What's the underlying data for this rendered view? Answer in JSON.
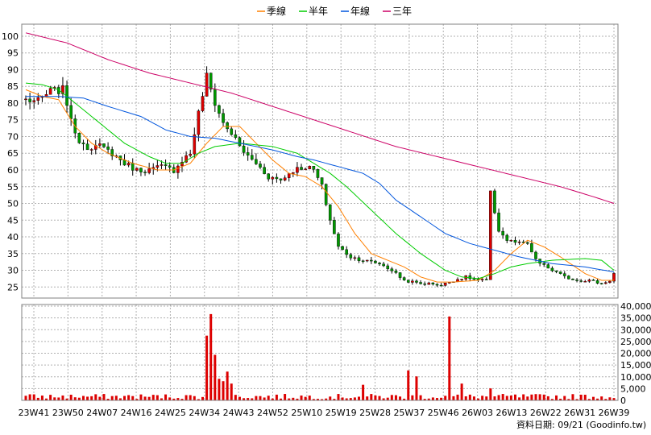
{
  "chart_data": {
    "type": "candlestick",
    "legend": [
      {
        "name": "季線",
        "color": "#ff8000"
      },
      {
        "name": "半年",
        "color": "#00cc00"
      },
      {
        "name": "年線",
        "color": "#0055dd"
      },
      {
        "name": "三年",
        "color": "#cc0066"
      }
    ],
    "legend_placement": "top-center",
    "grid": true,
    "price_axis": {
      "ticks": [
        100,
        95,
        90,
        85,
        80,
        75,
        70,
        65,
        60,
        55,
        50,
        45,
        40,
        35,
        30,
        25
      ],
      "range": [
        21.7,
        103.6
      ]
    },
    "volume_axis": {
      "ticks": [
        "40,000",
        "35,000",
        "30,000",
        "25,000",
        "20,000",
        "15,000",
        "10,000",
        "5,000",
        "0"
      ],
      "range": [
        0,
        40000
      ]
    },
    "x_labels": [
      "23W41",
      "23W50",
      "24W07",
      "24W16",
      "24W25",
      "24W34",
      "24W43",
      "24W52",
      "25W10",
      "25W19",
      "25W28",
      "25W37",
      "25W46",
      "26W03",
      "26W13",
      "26W22",
      "26W31",
      "26W39"
    ],
    "anchors": [
      {
        "w": 0,
        "p": 81
      },
      {
        "w": 3,
        "p": 80.5
      },
      {
        "w": 6,
        "p": 83.5
      },
      {
        "w": 9,
        "p": 84
      },
      {
        "w": 11,
        "p": 76
      },
      {
        "w": 12,
        "p": 70
      },
      {
        "w": 15,
        "p": 67
      },
      {
        "w": 18,
        "p": 67
      },
      {
        "w": 21,
        "p": 65
      },
      {
        "w": 24,
        "p": 62
      },
      {
        "w": 27,
        "p": 60
      },
      {
        "w": 30,
        "p": 60
      },
      {
        "w": 33,
        "p": 61
      },
      {
        "w": 36,
        "p": 60
      },
      {
        "w": 38,
        "p": 63
      },
      {
        "w": 40,
        "p": 65
      },
      {
        "w": 42,
        "p": 77
      },
      {
        "w": 44,
        "p": 88
      },
      {
        "w": 46,
        "p": 80
      },
      {
        "w": 48,
        "p": 74
      },
      {
        "w": 50,
        "p": 71
      },
      {
        "w": 52,
        "p": 67
      },
      {
        "w": 54,
        "p": 64
      },
      {
        "w": 56,
        "p": 62
      },
      {
        "w": 59,
        "p": 58
      },
      {
        "w": 62,
        "p": 57
      },
      {
        "w": 65,
        "p": 60
      },
      {
        "w": 68,
        "p": 61
      },
      {
        "w": 70,
        "p": 60
      },
      {
        "w": 72,
        "p": 55
      },
      {
        "w": 74,
        "p": 45
      },
      {
        "w": 76,
        "p": 37
      },
      {
        "w": 79,
        "p": 34
      },
      {
        "w": 82,
        "p": 33
      },
      {
        "w": 86,
        "p": 32
      },
      {
        "w": 89,
        "p": 30
      },
      {
        "w": 92,
        "p": 27
      },
      {
        "w": 96,
        "p": 26
      },
      {
        "w": 99,
        "p": 26
      },
      {
        "w": 101,
        "p": 25.5
      },
      {
        "w": 104,
        "p": 27
      },
      {
        "w": 107,
        "p": 28
      },
      {
        "w": 110,
        "p": 27
      },
      {
        "w": 112,
        "p": 27
      },
      {
        "w": 113,
        "p": 53
      },
      {
        "w": 115,
        "p": 42
      },
      {
        "w": 117,
        "p": 39
      },
      {
        "w": 120,
        "p": 38
      },
      {
        "w": 122,
        "p": 38
      },
      {
        "w": 123,
        "p": 35
      },
      {
        "w": 125,
        "p": 32
      },
      {
        "w": 128,
        "p": 30
      },
      {
        "w": 131,
        "p": 28
      },
      {
        "w": 134,
        "p": 27
      },
      {
        "w": 137,
        "p": 27
      },
      {
        "w": 140,
        "p": 26
      },
      {
        "w": 142,
        "p": 27
      },
      {
        "w": 143,
        "p": 29
      }
    ],
    "volume_spikes": [
      {
        "w": 44,
        "v": 27000
      },
      {
        "w": 45,
        "v": 36000
      },
      {
        "w": 46,
        "v": 19000
      },
      {
        "w": 47,
        "v": 9000
      },
      {
        "w": 48,
        "v": 8000
      },
      {
        "w": 49,
        "v": 12000
      },
      {
        "w": 50,
        "v": 7000
      },
      {
        "w": 82,
        "v": 6500
      },
      {
        "w": 93,
        "v": 12500
      },
      {
        "w": 95,
        "v": 10000
      },
      {
        "w": 103,
        "v": 35000
      },
      {
        "w": 106,
        "v": 7000
      },
      {
        "w": 113,
        "v": 5000
      }
    ],
    "moving_averages": {
      "季線": [
        [
          0,
          84
        ],
        [
          4,
          82
        ],
        [
          8,
          81
        ],
        [
          12,
          73
        ],
        [
          16,
          68
        ],
        [
          20,
          65
        ],
        [
          26,
          62
        ],
        [
          32,
          60
        ],
        [
          36,
          60
        ],
        [
          40,
          62
        ],
        [
          44,
          68
        ],
        [
          48,
          73
        ],
        [
          52,
          73
        ],
        [
          56,
          68
        ],
        [
          60,
          63
        ],
        [
          64,
          59
        ],
        [
          68,
          58
        ],
        [
          72,
          55
        ],
        [
          76,
          49
        ],
        [
          80,
          41
        ],
        [
          84,
          35
        ],
        [
          88,
          33
        ],
        [
          92,
          31
        ],
        [
          96,
          28
        ],
        [
          100,
          26.5
        ],
        [
          104,
          26.5
        ],
        [
          110,
          27
        ],
        [
          114,
          30
        ],
        [
          118,
          35
        ],
        [
          122,
          39
        ],
        [
          126,
          37
        ],
        [
          130,
          34
        ],
        [
          136,
          29
        ],
        [
          140,
          27
        ],
        [
          143,
          27
        ]
      ],
      "半年": [
        [
          0,
          86
        ],
        [
          4,
          85.5
        ],
        [
          8,
          84
        ],
        [
          12,
          80
        ],
        [
          16,
          76
        ],
        [
          20,
          72
        ],
        [
          24,
          68
        ],
        [
          30,
          64
        ],
        [
          34,
          62
        ],
        [
          38,
          62
        ],
        [
          42,
          65
        ],
        [
          46,
          67
        ],
        [
          52,
          68
        ],
        [
          60,
          67
        ],
        [
          66,
          65
        ],
        [
          70,
          62
        ],
        [
          74,
          59
        ],
        [
          78,
          55
        ],
        [
          84,
          48
        ],
        [
          90,
          41
        ],
        [
          96,
          35
        ],
        [
          102,
          30
        ],
        [
          106,
          28
        ],
        [
          110,
          27.5
        ],
        [
          114,
          29
        ],
        [
          118,
          31
        ],
        [
          122,
          32
        ],
        [
          128,
          33
        ],
        [
          136,
          33.5
        ],
        [
          140,
          33
        ],
        [
          143,
          30
        ]
      ],
      "年線": [
        [
          0,
          82
        ],
        [
          8,
          82
        ],
        [
          14,
          81.5
        ],
        [
          20,
          79
        ],
        [
          28,
          76
        ],
        [
          34,
          72
        ],
        [
          40,
          70
        ],
        [
          46,
          69.5
        ],
        [
          52,
          68
        ],
        [
          60,
          66
        ],
        [
          66,
          64
        ],
        [
          70,
          63
        ],
        [
          76,
          61
        ],
        [
          82,
          59
        ],
        [
          86,
          56
        ],
        [
          90,
          51
        ],
        [
          96,
          46
        ],
        [
          102,
          41
        ],
        [
          108,
          38
        ],
        [
          114,
          36
        ],
        [
          120,
          34
        ],
        [
          128,
          32
        ],
        [
          136,
          31
        ],
        [
          143,
          29.5
        ]
      ],
      "三年": [
        [
          0,
          101
        ],
        [
          10,
          98
        ],
        [
          20,
          93
        ],
        [
          30,
          89
        ],
        [
          40,
          86
        ],
        [
          50,
          83
        ],
        [
          60,
          79
        ],
        [
          70,
          75
        ],
        [
          80,
          71
        ],
        [
          90,
          67
        ],
        [
          100,
          64
        ],
        [
          110,
          61
        ],
        [
          120,
          58
        ],
        [
          130,
          55
        ],
        [
          138,
          52
        ],
        [
          143,
          50
        ]
      ]
    },
    "footer_label": "資料日期: 09/21",
    "footer_source": "(Goodinfo.tw)"
  }
}
